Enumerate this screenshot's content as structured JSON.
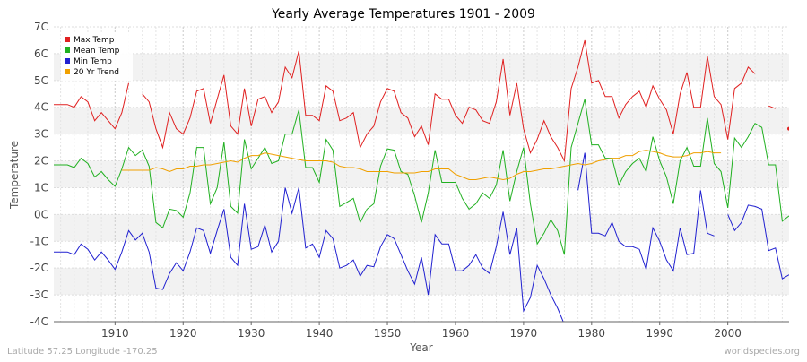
{
  "chart_data": {
    "type": "line",
    "title": "Yearly Average Temperatures 1901 - 2009",
    "x_label": "Year",
    "y_label": "Temperature",
    "footer_left": "Latitude 57.25 Longitude -170.25",
    "footer_right": "worldspecies.org",
    "x": [
      1901,
      1902,
      1903,
      1904,
      1905,
      1906,
      1907,
      1908,
      1909,
      1910,
      1911,
      1912,
      1913,
      1914,
      1915,
      1916,
      1917,
      1918,
      1919,
      1920,
      1921,
      1922,
      1923,
      1924,
      1925,
      1926,
      1927,
      1928,
      1929,
      1930,
      1931,
      1932,
      1933,
      1934,
      1935,
      1936,
      1937,
      1938,
      1939,
      1940,
      1941,
      1942,
      1943,
      1944,
      1945,
      1946,
      1947,
      1948,
      1949,
      1950,
      1951,
      1952,
      1953,
      1954,
      1955,
      1956,
      1957,
      1958,
      1959,
      1960,
      1961,
      1962,
      1963,
      1964,
      1965,
      1966,
      1967,
      1968,
      1969,
      1970,
      1971,
      1972,
      1973,
      1974,
      1975,
      1976,
      1977,
      1978,
      1979,
      1980,
      1981,
      1982,
      1983,
      1984,
      1985,
      1986,
      1987,
      1988,
      1989,
      1990,
      1991,
      1992,
      1993,
      1994,
      1995,
      1996,
      1997,
      1998,
      1999,
      2000,
      2001,
      2002,
      2003,
      2004,
      2005,
      2006,
      2007,
      2008,
      2009
    ],
    "xlim": [
      1901,
      2009
    ],
    "xticks": [
      1910,
      1920,
      1930,
      1940,
      1950,
      1960,
      1970,
      1980,
      1990,
      2000
    ],
    "ylim": [
      -4,
      7
    ],
    "yticks": [
      {
        "value": -4,
        "label": "-4C"
      },
      {
        "value": -3,
        "label": "-3C"
      },
      {
        "value": -2,
        "label": "-2C"
      },
      {
        "value": -1,
        "label": "-1C"
      },
      {
        "value": 0,
        "label": "0C"
      },
      {
        "value": 1,
        "label": "1C"
      },
      {
        "value": 2,
        "label": "2C"
      },
      {
        "value": 3,
        "label": "3C"
      },
      {
        "value": 4,
        "label": "4C"
      },
      {
        "value": 5,
        "label": "5C"
      },
      {
        "value": 6,
        "label": "6C"
      },
      {
        "value": 7,
        "label": "7C"
      }
    ],
    "grid": true,
    "legend": "top-left",
    "series": [
      {
        "name": "Max Temp",
        "color": "#e02020",
        "values": [
          4.1,
          4.1,
          4.1,
          4.0,
          4.4,
          4.2,
          3.5,
          3.8,
          3.5,
          3.2,
          3.8,
          4.9,
          null,
          4.5,
          4.2,
          3.2,
          2.5,
          3.8,
          3.2,
          3.0,
          3.6,
          4.6,
          4.7,
          3.4,
          4.3,
          5.2,
          3.3,
          3.0,
          4.7,
          3.3,
          4.3,
          4.4,
          3.8,
          4.2,
          5.5,
          5.1,
          6.1,
          3.7,
          3.7,
          3.5,
          4.8,
          4.6,
          3.5,
          3.6,
          3.8,
          2.5,
          3.0,
          3.3,
          4.2,
          4.7,
          4.6,
          3.8,
          3.6,
          2.9,
          3.3,
          2.6,
          4.5,
          4.3,
          4.3,
          3.7,
          3.4,
          4.0,
          3.9,
          3.5,
          3.4,
          4.2,
          5.8,
          3.7,
          4.9,
          3.2,
          2.3,
          2.8,
          3.5,
          2.9,
          2.5,
          2.0,
          4.7,
          5.5,
          6.5,
          4.9,
          5.0,
          4.4,
          4.4,
          3.6,
          4.1,
          4.4,
          4.6,
          4.0,
          4.8,
          4.3,
          3.9,
          3.0,
          4.5,
          5.3,
          4.0,
          4.0,
          5.9,
          4.4,
          4.1,
          2.8,
          4.7,
          4.9,
          5.5,
          5.25,
          null,
          4.05,
          3.95,
          null,
          3.2
        ]
      },
      {
        "name": "Mean Temp",
        "color": "#20b020",
        "values": [
          1.85,
          1.85,
          1.85,
          1.75,
          2.1,
          1.9,
          1.4,
          1.6,
          1.3,
          1.05,
          1.7,
          2.5,
          2.2,
          2.4,
          1.8,
          -0.3,
          -0.5,
          0.2,
          0.15,
          -0.1,
          0.8,
          2.5,
          2.5,
          0.4,
          1.0,
          2.7,
          0.3,
          0.05,
          2.8,
          1.7,
          2.1,
          2.5,
          1.9,
          2.0,
          3.0,
          3.0,
          3.9,
          1.75,
          1.75,
          1.2,
          2.8,
          2.4,
          0.3,
          0.45,
          0.6,
          -0.3,
          0.2,
          0.4,
          1.8,
          2.45,
          2.4,
          1.6,
          1.5,
          0.7,
          -0.3,
          0.8,
          2.4,
          1.2,
          1.2,
          1.2,
          0.6,
          0.2,
          0.4,
          0.8,
          0.6,
          1.1,
          2.4,
          0.5,
          1.6,
          2.5,
          0.4,
          -1.1,
          -0.7,
          -0.2,
          -0.6,
          -1.5,
          2.5,
          3.4,
          4.3,
          2.6,
          2.6,
          2.1,
          2.1,
          1.1,
          1.6,
          1.9,
          2.1,
          1.6,
          2.9,
          2.0,
          1.4,
          0.4,
          2.0,
          2.5,
          1.8,
          1.8,
          3.6,
          1.9,
          1.6,
          0.25,
          2.85,
          2.5,
          2.9,
          3.4,
          3.25,
          1.85,
          1.85,
          -0.25,
          -0.05
        ]
      },
      {
        "name": "Min Temp",
        "color": "#2020d0",
        "values": [
          -1.4,
          -1.4,
          -1.4,
          -1.5,
          -1.1,
          -1.3,
          -1.7,
          -1.4,
          -1.7,
          -2.05,
          -1.4,
          -0.6,
          -0.95,
          -0.7,
          -1.4,
          -2.75,
          -2.8,
          -2.2,
          -1.8,
          -2.1,
          -1.4,
          -0.5,
          -0.6,
          -1.45,
          -0.6,
          0.2,
          -1.6,
          -1.9,
          0.4,
          -1.3,
          -1.2,
          -0.4,
          -1.4,
          -1.0,
          1.0,
          0.05,
          1.0,
          -1.25,
          -1.1,
          -1.6,
          -0.6,
          -0.9,
          -2.0,
          -1.9,
          -1.7,
          -2.3,
          -1.9,
          -1.95,
          -1.2,
          -0.75,
          -0.9,
          -1.5,
          -2.1,
          -2.6,
          -1.6,
          -3.0,
          -0.75,
          -1.1,
          -1.1,
          -2.1,
          -2.1,
          -1.9,
          -1.5,
          -2.0,
          -2.2,
          -1.2,
          0.1,
          -1.5,
          -0.5,
          -3.6,
          -3.1,
          -1.9,
          -2.4,
          -3.0,
          -3.5,
          -4.1,
          null,
          0.9,
          2.3,
          -0.7,
          -0.7,
          -0.8,
          -0.3,
          -1.0,
          -1.2,
          -1.2,
          -1.3,
          -2.05,
          -0.5,
          -1.0,
          -1.7,
          -2.1,
          -0.5,
          -1.5,
          -1.45,
          0.9,
          -0.7,
          -0.8,
          null,
          0.0,
          -0.6,
          -0.3,
          0.35,
          0.3,
          0.2,
          -1.35,
          -1.25,
          -2.4,
          -2.25
        ]
      },
      {
        "name": "20 Yr Trend",
        "color": "#f0a000",
        "values": [
          null,
          null,
          null,
          null,
          null,
          null,
          null,
          null,
          null,
          null,
          1.65,
          1.65,
          1.65,
          1.65,
          1.65,
          1.75,
          1.7,
          1.6,
          1.7,
          1.7,
          1.8,
          1.8,
          1.85,
          1.85,
          1.9,
          1.95,
          2.0,
          1.95,
          2.1,
          2.2,
          2.2,
          2.3,
          2.25,
          2.2,
          2.15,
          2.1,
          2.05,
          2.0,
          2.0,
          2.0,
          2.0,
          1.95,
          1.8,
          1.75,
          1.75,
          1.7,
          1.6,
          1.6,
          1.6,
          1.6,
          1.55,
          1.55,
          1.55,
          1.55,
          1.6,
          1.6,
          1.7,
          1.7,
          1.7,
          1.5,
          1.4,
          1.3,
          1.3,
          1.35,
          1.4,
          1.35,
          1.3,
          1.35,
          1.5,
          1.6,
          1.6,
          1.65,
          1.7,
          1.7,
          1.75,
          1.8,
          1.85,
          1.9,
          1.85,
          1.9,
          2.0,
          2.05,
          2.1,
          2.1,
          2.2,
          2.2,
          2.35,
          2.4,
          2.35,
          2.3,
          2.2,
          2.15,
          2.15,
          2.2,
          2.3,
          2.3,
          2.35,
          2.3,
          2.3,
          null,
          null,
          null,
          null,
          null,
          null,
          null,
          null,
          null,
          null
        ]
      }
    ]
  }
}
